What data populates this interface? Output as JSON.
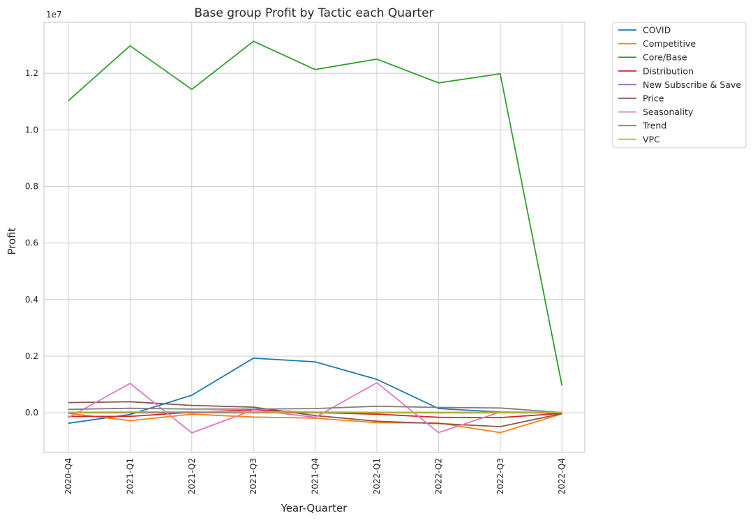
{
  "chart_data": {
    "type": "line",
    "title": "Base group Profit by Tactic each Quarter",
    "xlabel": "Year-Quarter",
    "ylabel": "Profit",
    "y_offset_label": "1e7",
    "ylim": [
      -1400000,
      13800000
    ],
    "yticks": [
      0,
      2000000,
      4000000,
      6000000,
      8000000,
      10000000,
      12000000
    ],
    "ytick_labels": [
      "0.0",
      "0.2",
      "0.4",
      "0.6",
      "0.8",
      "1.0",
      "1.2"
    ],
    "grid": true,
    "legend_position": "outside-top-right",
    "categories": [
      "2020-Q4",
      "2021-Q1",
      "2021-Q2",
      "2021-Q3",
      "2021-Q4",
      "2022-Q1",
      "2022-Q2",
      "2022-Q3",
      "2022-Q4"
    ],
    "series": [
      {
        "name": "COVID",
        "color": "#1f77b4",
        "values": [
          -370000,
          -60000,
          620000,
          1930000,
          1800000,
          1180000,
          150000,
          30000,
          -20000
        ]
      },
      {
        "name": "Competitive",
        "color": "#ff7f0e",
        "values": [
          -20000,
          -280000,
          -50000,
          -150000,
          -190000,
          -350000,
          -360000,
          -700000,
          -40000
        ]
      },
      {
        "name": "Core/Base",
        "color": "#2ca02c",
        "values": [
          11030000,
          12970000,
          11430000,
          13130000,
          12130000,
          12500000,
          11660000,
          11980000,
          970000
        ]
      },
      {
        "name": "Distribution",
        "color": "#d62728",
        "values": [
          -130000,
          -130000,
          20000,
          100000,
          10000,
          -50000,
          -160000,
          -170000,
          -20000
        ]
      },
      {
        "name": "New Subscribe & Save",
        "color": "#9467bd",
        "values": [
          0,
          0,
          0,
          0,
          0,
          0,
          0,
          0,
          0
        ]
      },
      {
        "name": "Price",
        "color": "#8c564b",
        "values": [
          360000,
          390000,
          260000,
          200000,
          -100000,
          -300000,
          -380000,
          -490000,
          -30000
        ]
      },
      {
        "name": "Seasonality",
        "color": "#e377c2",
        "values": [
          -170000,
          1040000,
          -710000,
          100000,
          -160000,
          1060000,
          -700000,
          30000,
          20000
        ]
      },
      {
        "name": "Trend",
        "color": "#7f7f7f",
        "values": [
          120000,
          160000,
          130000,
          130000,
          150000,
          230000,
          190000,
          170000,
          10000
        ]
      },
      {
        "name": "VPC",
        "color": "#bcbd22",
        "values": [
          20000,
          30000,
          40000,
          30000,
          30000,
          20000,
          20000,
          20000,
          20000
        ]
      }
    ]
  }
}
